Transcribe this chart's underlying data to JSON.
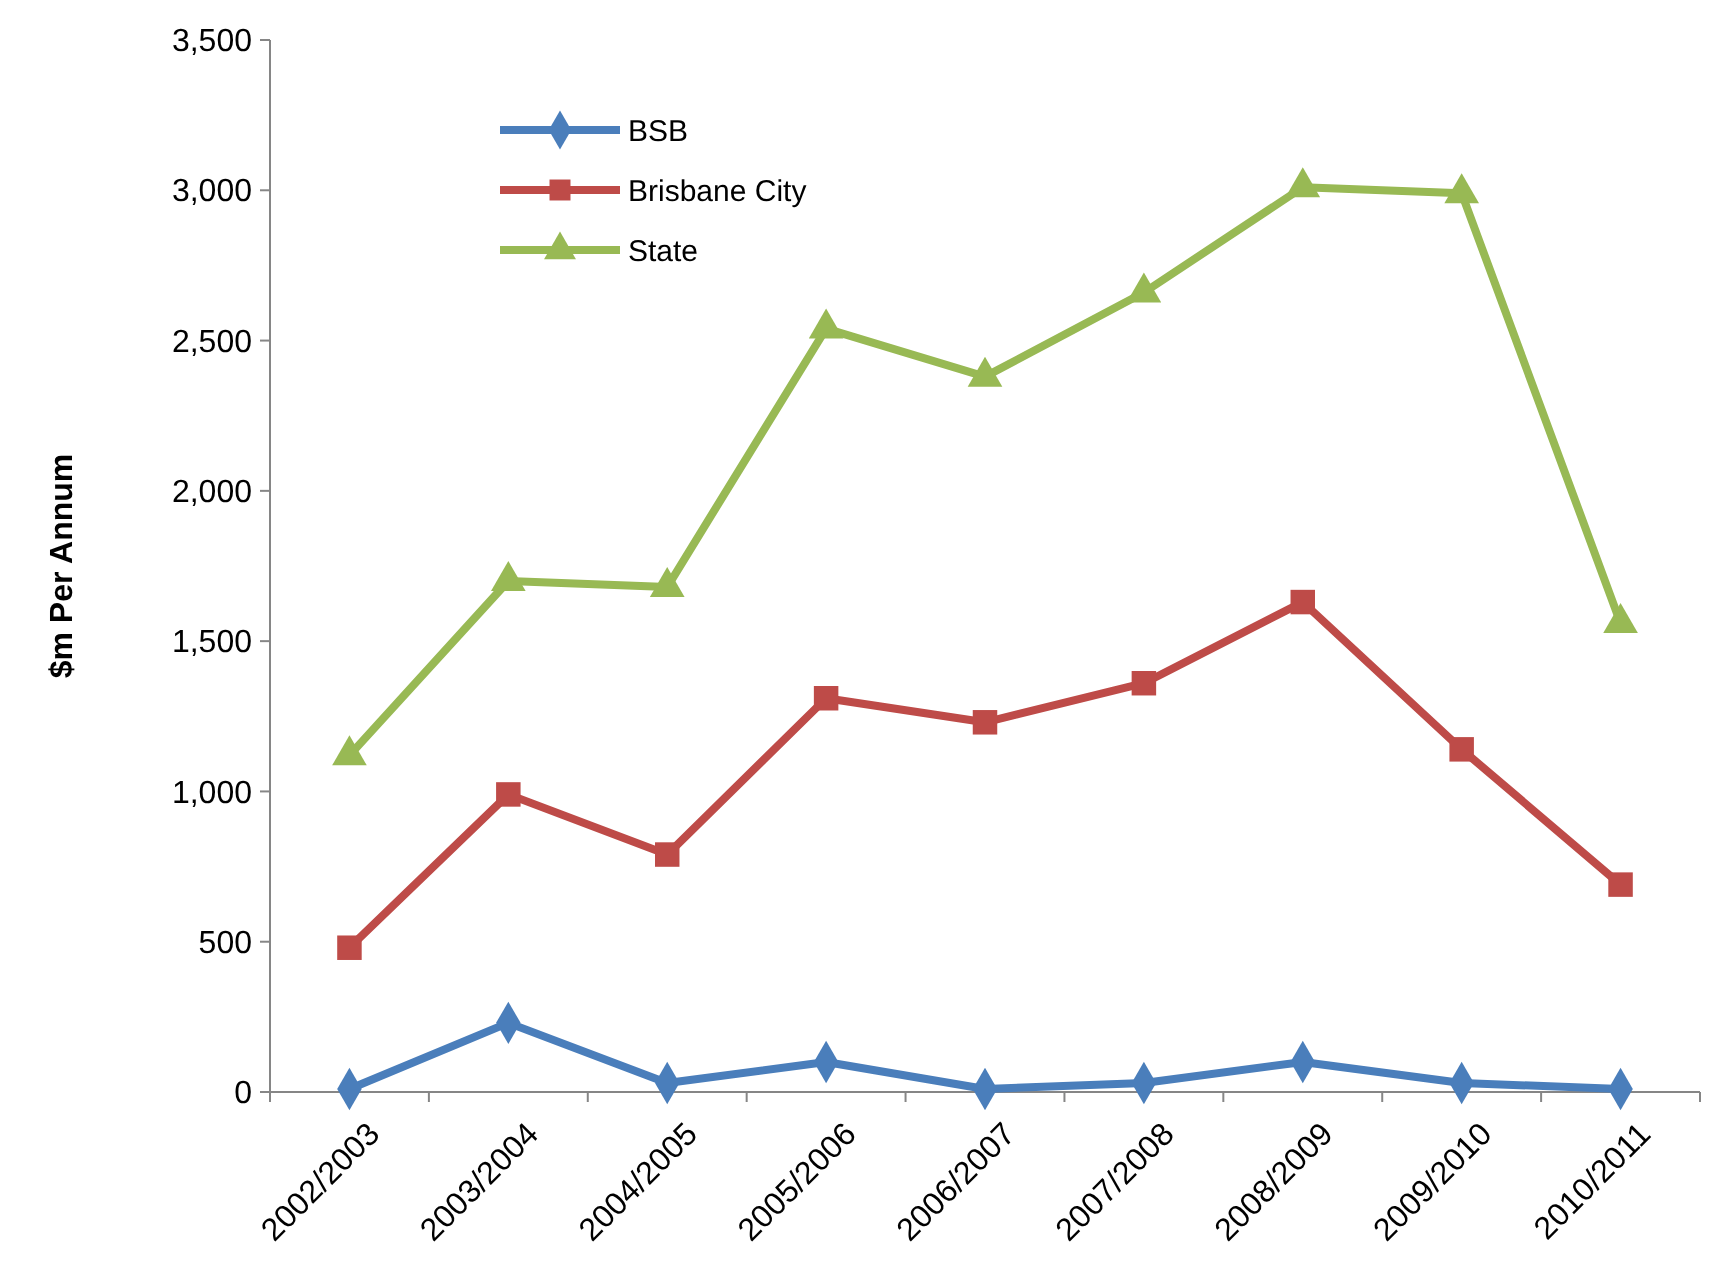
{
  "chart_data": {
    "type": "line",
    "ylabel": "$m Per Annum",
    "categories": [
      "2002/2003",
      "2003/2004",
      "2004/2005",
      "2005/2006",
      "2006/2007",
      "2007/2008",
      "2008/2009",
      "2009/2010",
      "2010/2011"
    ],
    "ylim": [
      0,
      3500
    ],
    "yticks": [
      {
        "value": 0,
        "label": "0"
      },
      {
        "value": 500,
        "label": "500"
      },
      {
        "value": 1000,
        "label": "1,000"
      },
      {
        "value": 1500,
        "label": "1,500"
      },
      {
        "value": 2000,
        "label": "2,000"
      },
      {
        "value": 2500,
        "label": "2,500"
      },
      {
        "value": 3000,
        "label": "3,000"
      },
      {
        "value": 3500,
        "label": "3,500"
      }
    ],
    "grid": false,
    "legend": "top left",
    "series": [
      {
        "name": "BSB",
        "color": "#4a7ebb",
        "marker": "diamond",
        "values": [
          10,
          230,
          30,
          100,
          10,
          30,
          100,
          30,
          10
        ]
      },
      {
        "name": "Brisbane City",
        "color": "#be4b48",
        "marker": "square",
        "values": [
          480,
          990,
          790,
          1310,
          1230,
          1360,
          1630,
          1140,
          690
        ]
      },
      {
        "name": "State",
        "color": "#98b954",
        "marker": "triangle",
        "values": [
          1120,
          1700,
          1680,
          2540,
          2380,
          2660,
          3010,
          2990,
          1560
        ]
      }
    ]
  }
}
